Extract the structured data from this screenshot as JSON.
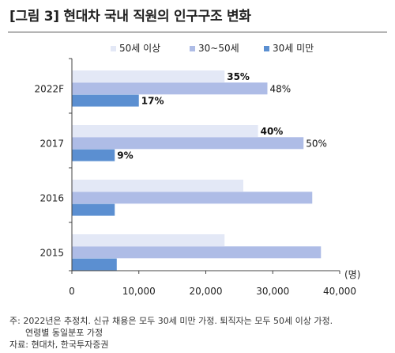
{
  "figure": {
    "title": "[그림 3] 현대차 국내 직원의 인구구조 변화"
  },
  "chart_data": {
    "type": "bar",
    "orientation": "horizontal",
    "categories": [
      "2022F",
      "2017",
      "2016",
      "2015"
    ],
    "series": [
      {
        "name": "50세 이상",
        "color": "#e3e8f6",
        "values": [
          22800,
          27800,
          25600,
          22800
        ],
        "labels": [
          "35%",
          "40%",
          "",
          ""
        ]
      },
      {
        "name": "30~50세",
        "color": "#aebce6",
        "values": [
          29200,
          34600,
          35900,
          37200
        ],
        "labels": [
          "48%",
          "50%",
          "",
          ""
        ]
      },
      {
        "name": "30세 미만",
        "color": "#5b8fd1",
        "values": [
          10000,
          6400,
          6400,
          6700
        ],
        "labels": [
          "17%",
          "9%",
          "",
          ""
        ]
      }
    ],
    "xlim": [
      0,
      40000
    ],
    "xticks": [
      0,
      10000,
      20000,
      30000,
      40000
    ],
    "xtick_labels": [
      "0",
      "10,000",
      "20,000",
      "30,000",
      "40,000"
    ],
    "unit_label": "(명)",
    "legend_position": "top",
    "grid": false
  },
  "notes": {
    "line1": "주: 2022년은 추정치. 신규 채용은 모두 30세 미만 가정. 퇴직자는 모두 50세 이상 가정.",
    "line2": "연령별 동일분포 가정",
    "source": "자료: 현대차, 한국투자증권"
  }
}
